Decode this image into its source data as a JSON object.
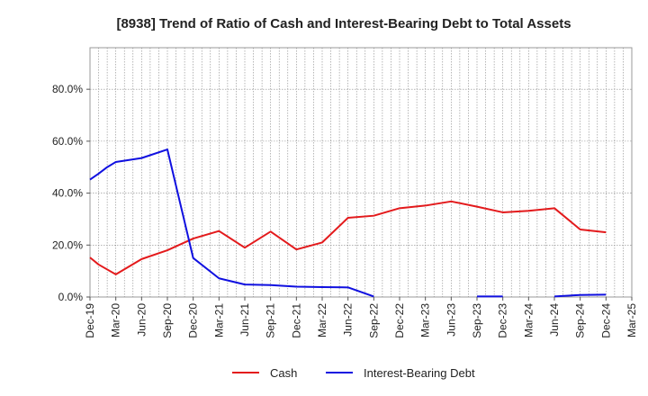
{
  "chart_data": {
    "type": "line",
    "title": "[8938]  Trend of Ratio of Cash and Interest-Bearing Debt to Total Assets",
    "xlabel": "",
    "ylabel": "",
    "ylim": [
      0,
      96
    ],
    "yticks": [
      0,
      20,
      40,
      60,
      80
    ],
    "ytick_labels": [
      "0.0%",
      "20.0%",
      "40.0%",
      "60.0%",
      "80.0%"
    ],
    "xtick_labels": [
      "Dec-19",
      "Mar-20",
      "Jun-20",
      "Sep-20",
      "Dec-20",
      "Mar-21",
      "Jun-21",
      "Sep-21",
      "Dec-21",
      "Mar-22",
      "Jun-22",
      "Sep-22",
      "Dec-22",
      "Mar-23",
      "Jun-23",
      "Sep-23",
      "Dec-23",
      "Mar-24",
      "Jun-24",
      "Sep-24",
      "Dec-24",
      "Mar-25"
    ],
    "grid": true,
    "legend_position": "bottom",
    "series": [
      {
        "name": "Cash",
        "color": "#e31a1c",
        "points": [
          [
            "Dec-19",
            15.2
          ],
          [
            "Jan-20",
            12.5
          ],
          [
            "Mar-20",
            8.7
          ],
          [
            "Jun-20",
            14.6
          ],
          [
            "Sep-20",
            18.0
          ],
          [
            "Dec-20",
            22.5
          ],
          [
            "Mar-21",
            25.4
          ],
          [
            "Jun-21",
            19.0
          ],
          [
            "Sep-21",
            25.2
          ],
          [
            "Dec-21",
            18.3
          ],
          [
            "Mar-22",
            21.0
          ],
          [
            "Jun-22",
            30.5
          ],
          [
            "Sep-22",
            31.3
          ],
          [
            "Dec-22",
            34.2
          ],
          [
            "Mar-23",
            35.2
          ],
          [
            "Jun-23",
            36.8
          ],
          [
            "Sep-23",
            34.8
          ],
          [
            "Dec-23",
            32.6
          ],
          [
            "Mar-24",
            33.2
          ],
          [
            "Jun-24",
            34.2
          ],
          [
            "Sep-24",
            26.0
          ],
          [
            "Dec-24",
            24.9
          ]
        ]
      },
      {
        "name": "Interest-Bearing Debt",
        "color": "#1010e0",
        "segments": [
          [
            [
              "Dec-19",
              45.2
            ],
            [
              "Jan-20",
              47.5
            ],
            [
              "Feb-20",
              50.0
            ],
            [
              "Mar-20",
              52.0
            ],
            [
              "Jun-20",
              53.5
            ],
            [
              "Sep-20",
              56.8
            ],
            [
              "Dec-20",
              15.0
            ],
            [
              "Mar-21",
              7.2
            ],
            [
              "Jun-21",
              4.8
            ],
            [
              "Sep-21",
              4.6
            ],
            [
              "Dec-21",
              4.0
            ],
            [
              "Mar-22",
              3.8
            ],
            [
              "Jun-22",
              3.7
            ],
            [
              "Sep-22",
              0.2
            ]
          ],
          [
            [
              "Sep-23",
              0.2
            ],
            [
              "Dec-23",
              0.2
            ]
          ],
          [
            [
              "Jun-24",
              0.2
            ],
            [
              "Sep-24",
              0.8
            ],
            [
              "Dec-24",
              0.9
            ]
          ]
        ]
      }
    ]
  }
}
